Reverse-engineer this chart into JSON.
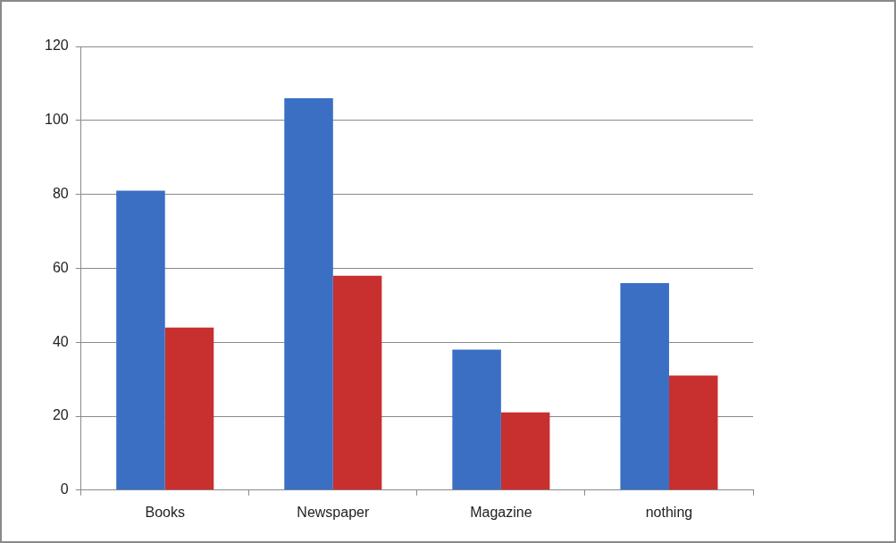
{
  "chart_data": {
    "type": "bar",
    "categories": [
      "Books",
      "Newspaper",
      "Magazine",
      "nothing"
    ],
    "series": [
      {
        "color": "#3a6fc4",
        "values": [
          81,
          106,
          38,
          56
        ]
      },
      {
        "color": "#c8302f",
        "values": [
          44,
          58,
          21,
          31
        ]
      }
    ],
    "ylim": [
      0,
      120
    ],
    "yticks": [
      0,
      20,
      40,
      60,
      80,
      100,
      120
    ],
    "grid": "y",
    "legend": false
  }
}
